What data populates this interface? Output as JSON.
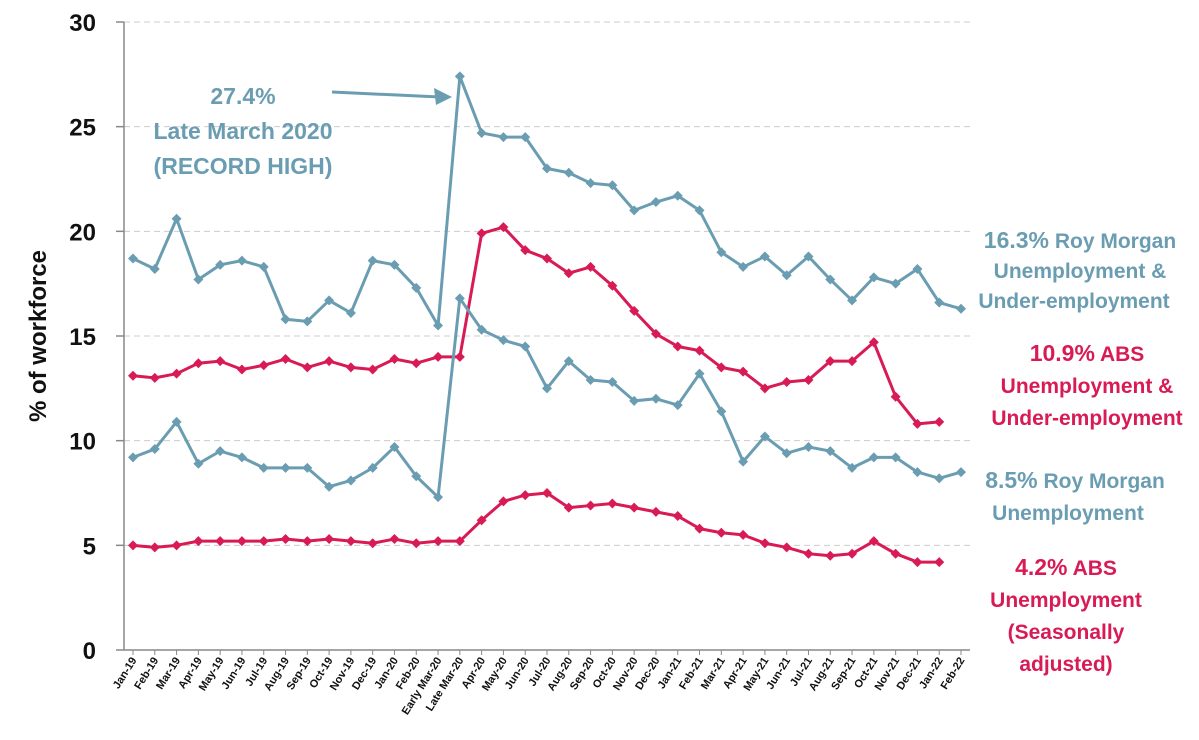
{
  "colors": {
    "roy_morgan": "#6a9db1",
    "abs": "#d81b55",
    "grid": "#cccccc",
    "axis": "#888888"
  },
  "chart_data": {
    "type": "line",
    "ylabel": "% of workforce",
    "ylim": [
      0,
      30
    ],
    "yticks": [
      "0",
      "5",
      "10",
      "15",
      "20",
      "25",
      "30"
    ],
    "grid": true,
    "categories": [
      "Jan-19",
      "Feb-19",
      "Mar-19",
      "Apr-19",
      "May-19",
      "Jun-19",
      "Jul-19",
      "Aug-19",
      "Sep-19",
      "Oct-19",
      "Nov-19",
      "Dec-19",
      "Jan-20",
      "Feb-20",
      "Early Mar-20",
      "Late Mar-20",
      "Apr-20",
      "May-20",
      "Jun-20",
      "Jul-20",
      "Aug-20",
      "Sep-20",
      "Oct-20",
      "Nov-20",
      "Dec-20",
      "Jan-21",
      "Feb-21",
      "Mar-21",
      "Apr-21",
      "May-21",
      "Jun-21",
      "Jul-21",
      "Aug-21",
      "Sep-21",
      "Oct-21",
      "Nov-21",
      "Dec-21",
      "Jan-22",
      "Feb-22"
    ],
    "series": [
      {
        "key": "rm_under",
        "color": "#6a9db1",
        "values": [
          18.7,
          18.2,
          20.6,
          17.7,
          18.4,
          18.6,
          18.3,
          15.8,
          15.7,
          16.7,
          16.1,
          18.6,
          18.4,
          17.3,
          15.5,
          27.4,
          24.7,
          24.5,
          24.5,
          23.0,
          22.8,
          22.3,
          22.2,
          21.0,
          21.4,
          21.7,
          21.0,
          19.0,
          18.3,
          18.8,
          17.9,
          18.8,
          17.7,
          16.7,
          17.8,
          17.5,
          18.2,
          16.6,
          16.3
        ]
      },
      {
        "key": "abs_under",
        "color": "#d81b55",
        "values": [
          13.1,
          13.0,
          13.2,
          13.7,
          13.8,
          13.4,
          13.6,
          13.9,
          13.5,
          13.8,
          13.5,
          13.4,
          13.9,
          13.7,
          14.0,
          14.0,
          19.9,
          20.2,
          19.1,
          18.7,
          18.0,
          18.3,
          17.4,
          16.2,
          15.1,
          14.5,
          14.3,
          13.5,
          13.3,
          12.5,
          12.8,
          12.9,
          13.8,
          13.8,
          14.7,
          12.1,
          10.8,
          10.9,
          null
        ]
      },
      {
        "key": "rm_unemp",
        "color": "#6a9db1",
        "values": [
          9.2,
          9.6,
          10.9,
          8.9,
          9.5,
          9.2,
          8.7,
          8.7,
          8.7,
          7.8,
          8.1,
          8.7,
          9.7,
          8.3,
          7.3,
          16.8,
          15.3,
          14.8,
          14.5,
          12.5,
          13.8,
          12.9,
          12.8,
          11.9,
          12.0,
          11.7,
          13.2,
          11.4,
          9.0,
          10.2,
          9.4,
          9.7,
          9.5,
          8.7,
          9.2,
          9.2,
          8.5,
          8.2,
          8.5
        ]
      },
      {
        "key": "abs_unemp",
        "color": "#d81b55",
        "values": [
          5.0,
          4.9,
          5.0,
          5.2,
          5.2,
          5.2,
          5.2,
          5.3,
          5.2,
          5.3,
          5.2,
          5.1,
          5.3,
          5.1,
          5.2,
          5.2,
          6.2,
          7.1,
          7.4,
          7.5,
          6.8,
          6.9,
          7.0,
          6.8,
          6.6,
          6.4,
          5.8,
          5.6,
          5.5,
          5.1,
          4.9,
          4.6,
          4.5,
          4.6,
          5.2,
          4.6,
          4.2,
          4.2,
          null
        ]
      }
    ],
    "annotation": {
      "line1": "27.4%",
      "line2": "Late March 2020",
      "line3": "(RECORD HIGH)"
    },
    "legend": {
      "rm_under": {
        "pct": "16.3%",
        "l1": "Roy Morgan",
        "l2": "Unemployment &",
        "l3": "Under-employment"
      },
      "abs_under": {
        "pct": "10.9%",
        "l1": "ABS",
        "l2": "Unemployment &",
        "l3": "Under-employment"
      },
      "rm_unemp": {
        "pct": "8.5%",
        "l1": "Roy Morgan",
        "l2": "Unemployment"
      },
      "abs_unemp": {
        "pct": "4.2%",
        "l1": "ABS",
        "l2": "Unemployment",
        "l3": "(Seasonally",
        "l4": "adjusted)"
      }
    }
  }
}
